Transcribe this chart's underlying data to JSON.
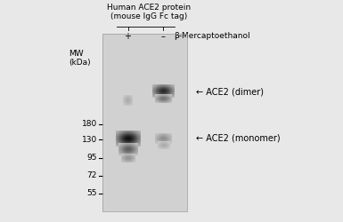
{
  "title_line1": "Human ACE2 protein",
  "title_line2": "(mouse IgG Fc tag)",
  "beta_mercaptoethanol_label": "β-Mercaptoethanol",
  "lane_labels": [
    "+",
    "–"
  ],
  "mw_label": "MW",
  "mw_unit": "(kDa)",
  "mw_markers": [
    180,
    130,
    95,
    72,
    55
  ],
  "band_dimer_label": "← ACE2 (dimer)",
  "band_monomer_label": "← ACE2 (monomer)",
  "fig_bg_color": "#e8e8e8",
  "gel_bg_light": 0.82,
  "font_size_title": 6.5,
  "font_size_mw": 6.5,
  "font_size_label": 7.0,
  "font_size_lane": 7.0
}
